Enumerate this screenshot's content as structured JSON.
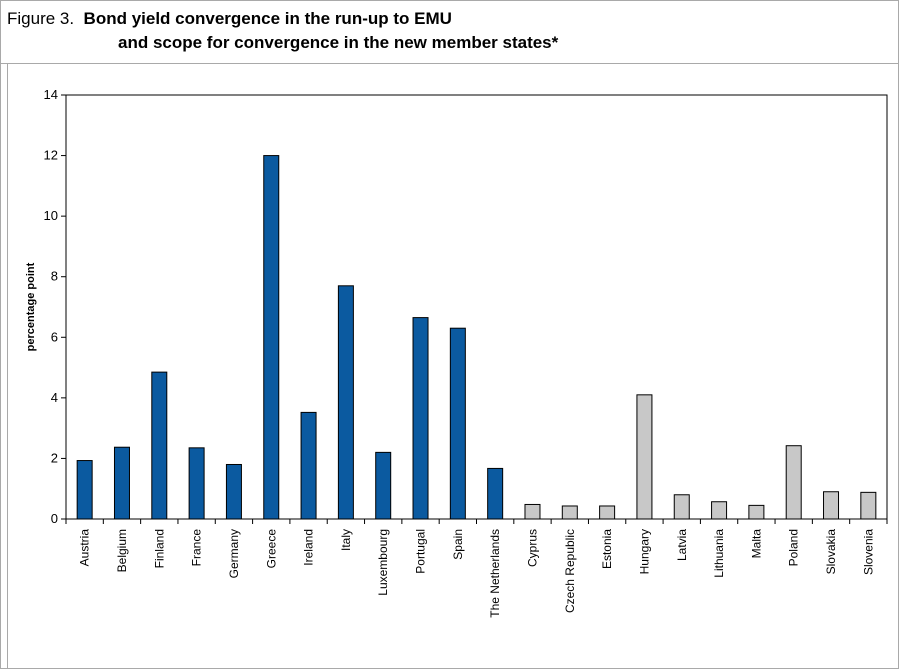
{
  "figure": {
    "label": "Figure 3.",
    "title_line1": "Bond yield convergence in the run-up to EMU",
    "title_line2": "and scope for convergence in the new member states*"
  },
  "chart_data": {
    "type": "bar",
    "title": "Bond yield convergence in the run-up to EMU and scope for convergence in the new member states*",
    "xlabel": "",
    "ylabel": "percentage point",
    "ylim": [
      0,
      14
    ],
    "yticks": [
      0,
      2,
      4,
      6,
      8,
      10,
      12,
      14
    ],
    "grid": false,
    "categories": [
      "Austria",
      "Belgium",
      "Finland",
      "France",
      "Germany",
      "Greece",
      "Ireland",
      "Italy",
      "Luxembourg",
      "Portugal",
      "Spain",
      "The Netherlands",
      "Cyprus",
      "Czech Republic",
      "Estonia",
      "Hungary",
      "Latvia",
      "Lithuania",
      "Malta",
      "Poland",
      "Slovakia",
      "Slovenia"
    ],
    "values": [
      1.93,
      2.37,
      4.85,
      2.35,
      1.8,
      12.0,
      3.52,
      7.7,
      2.2,
      6.65,
      6.3,
      1.67,
      0.48,
      0.43,
      0.43,
      4.1,
      0.8,
      0.57,
      0.45,
      2.42,
      0.9,
      0.88
    ],
    "colors": [
      "#0b5aa0",
      "#0b5aa0",
      "#0b5aa0",
      "#0b5aa0",
      "#0b5aa0",
      "#0b5aa0",
      "#0b5aa0",
      "#0b5aa0",
      "#0b5aa0",
      "#0b5aa0",
      "#0b5aa0",
      "#0b5aa0",
      "#c8c8c8",
      "#c8c8c8",
      "#c8c8c8",
      "#c8c8c8",
      "#c8c8c8",
      "#c8c8c8",
      "#c8c8c8",
      "#c8c8c8",
      "#c8c8c8",
      "#c8c8c8"
    ],
    "bar_stroke": "#000000"
  }
}
